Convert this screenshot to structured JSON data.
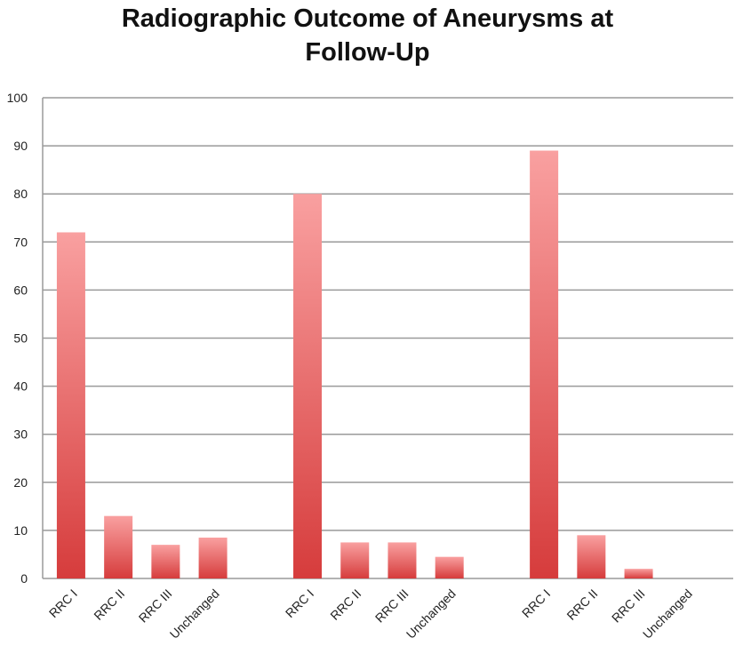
{
  "chart_data": {
    "type": "bar",
    "title_lines": [
      "Radiographic Outcome of Aneurysms at",
      "Follow-Up"
    ],
    "xlabel": "",
    "ylabel": "",
    "ylim": [
      0,
      100
    ],
    "yticks": [
      0,
      10,
      20,
      30,
      40,
      50,
      60,
      70,
      80,
      90,
      100
    ],
    "grid": true,
    "legend": "none",
    "bar_color_top": "#f9a0a0",
    "bar_color_bottom": "#d63c3c",
    "groups": [
      {
        "categories": [
          "RRC I",
          "RRC II",
          "RRC III",
          "Unchanged"
        ],
        "values": [
          72,
          13,
          7,
          8.5
        ]
      },
      {
        "categories": [
          "RRC I",
          "RRC II",
          "RRC III",
          "Unchanged"
        ],
        "values": [
          80,
          7.5,
          7.5,
          4.5
        ]
      },
      {
        "categories": [
          "RRC I",
          "RRC II",
          "RRC III",
          "Unchanged"
        ],
        "values": [
          89,
          9,
          2,
          0
        ]
      }
    ]
  }
}
